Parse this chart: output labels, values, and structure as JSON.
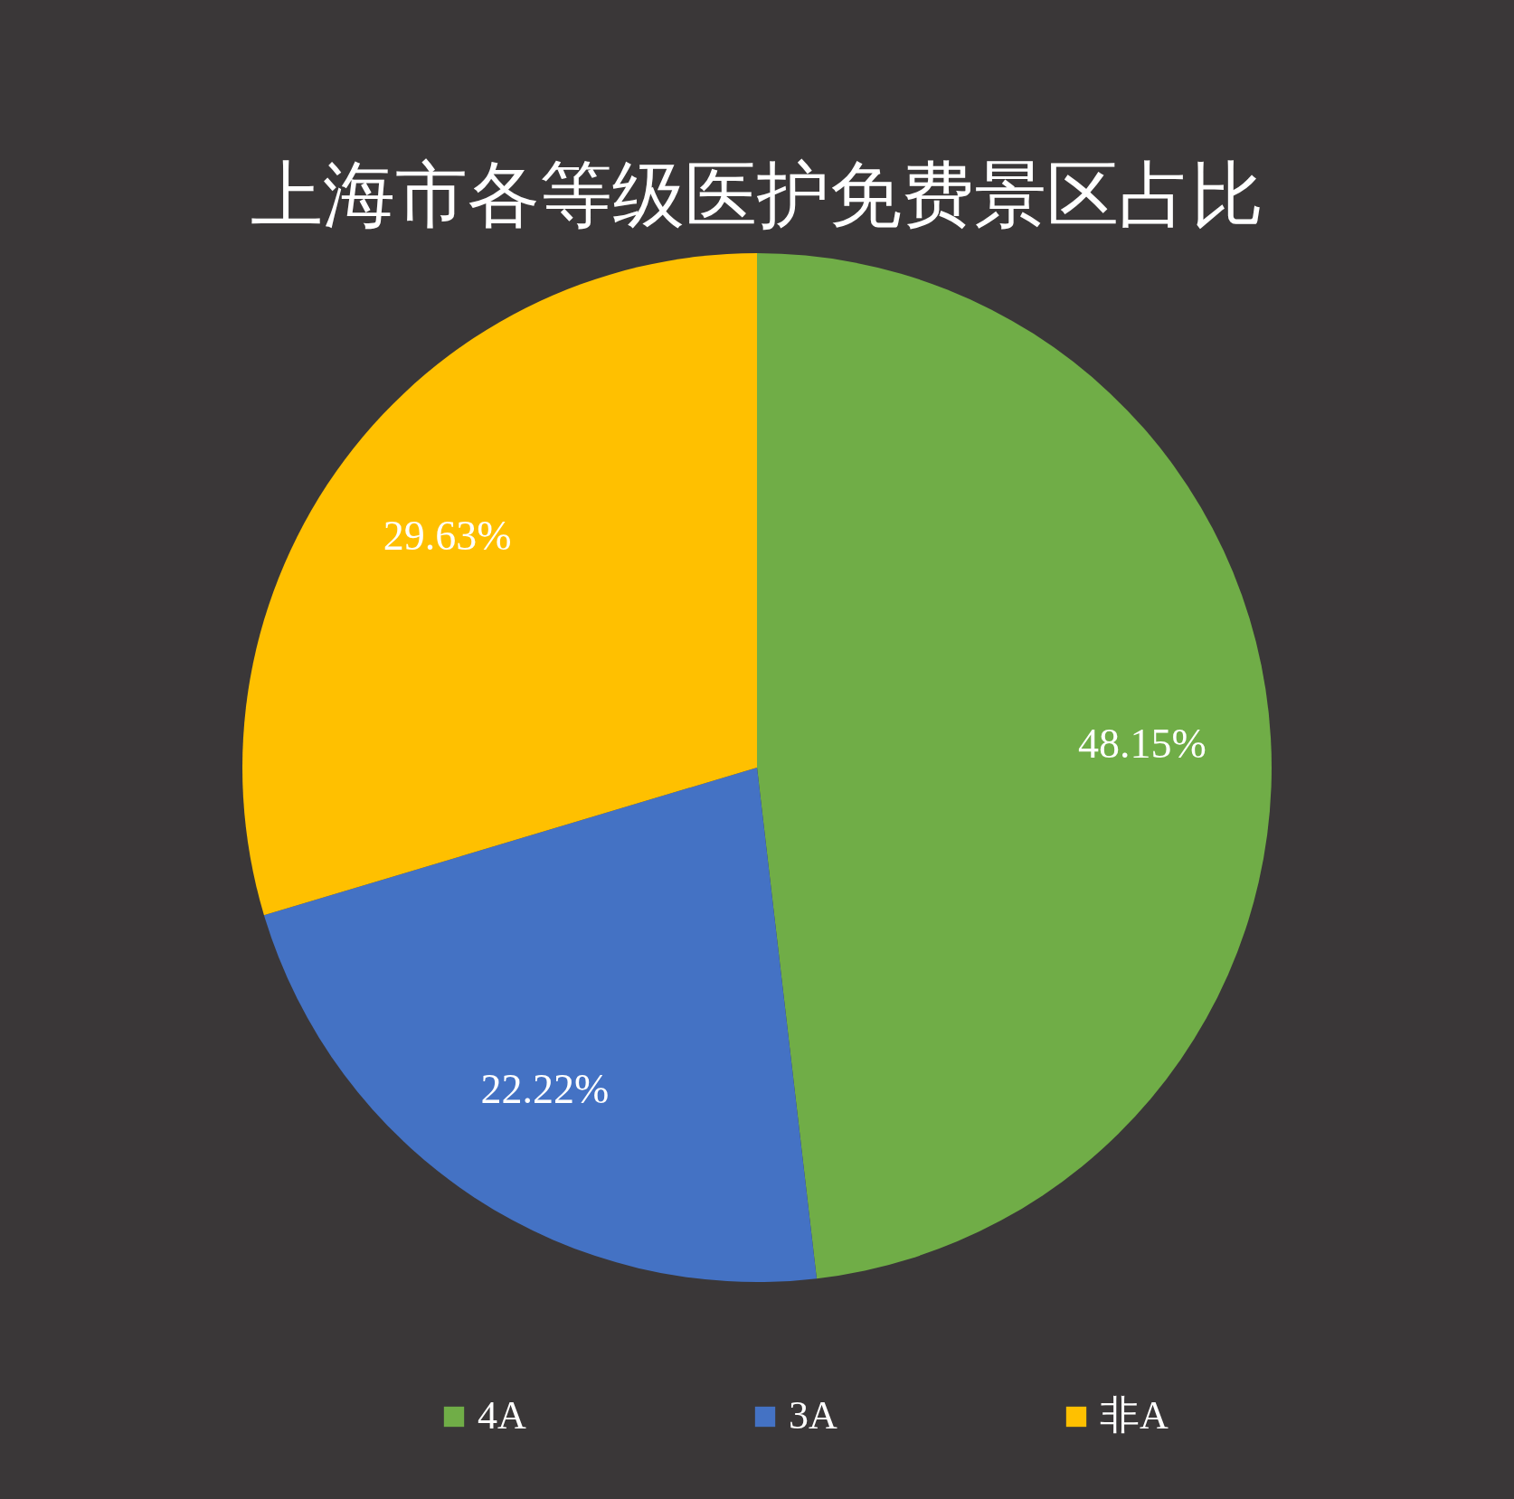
{
  "chart_data": {
    "type": "pie",
    "title": "上海市各等级医护免费景区占比",
    "categories": [
      "4A",
      "3A",
      "非A"
    ],
    "values": [
      48.15,
      22.22,
      29.63
    ],
    "colors": [
      "#70ad47",
      "#4472c4",
      "#ffc000"
    ],
    "value_labels": [
      "48.15%",
      "22.22%",
      "29.63%"
    ],
    "legend": "bottom"
  }
}
